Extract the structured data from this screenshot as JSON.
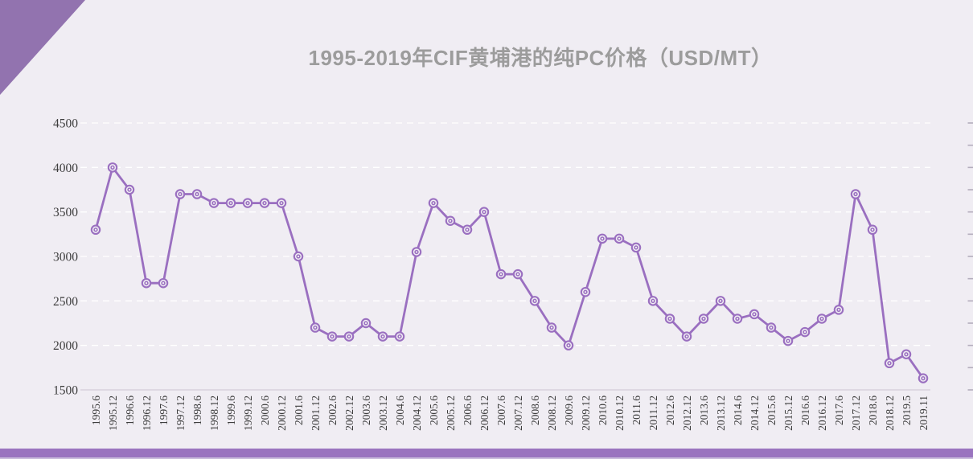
{
  "title": "1995-2019年CIF黄埔港的纯PC价格（USD/MT）",
  "colors": {
    "background": "#f0edf3",
    "accent_triangle": "#9273af",
    "accent_bar": "#9a74bf",
    "accent_strip": "#c9bcdb",
    "line": "#9a6fc0",
    "marker_fill": "#f0edf3",
    "title_text": "#9c9c9c",
    "axis_text": "#3d3d3d",
    "gridline": "#ffffff",
    "axis_line": "#d7d2dc",
    "right_tick": "#b3adbc"
  },
  "chart_data": {
    "type": "line",
    "title": "1995-2019年CIF黄埔港的纯PC价格（USD/MT）",
    "ylabel": "",
    "xlabel": "",
    "ylim": [
      1500,
      4500
    ],
    "yticks": [
      1500,
      2000,
      2500,
      3000,
      3500,
      4000,
      4500
    ],
    "grid": "horizontal-white-dashed",
    "legend": "none",
    "marker": "circle-dot",
    "categories": [
      "1995.6",
      "1995.12",
      "1996.6",
      "1996.12",
      "1997.6",
      "1997.12",
      "1998.6",
      "1998.12",
      "1999.6",
      "1999.12",
      "2000.6",
      "2000.12",
      "2001.6",
      "2001.12",
      "2002.6",
      "2002.12",
      "2003.6",
      "2003.12",
      "2004.6",
      "2004.12",
      "2005.6",
      "2005.12",
      "2006.6",
      "2006.12",
      "2007.6",
      "2007.12",
      "2008.6",
      "2008.12",
      "2009.6",
      "2009.12",
      "2010.6",
      "2010.12",
      "2011.6",
      "2011.12",
      "2012.6",
      "2012.12",
      "2013.6",
      "2013.12",
      "2014.6",
      "2014.12",
      "2015.6",
      "2015.12",
      "2016.6",
      "2016.12",
      "2017.6",
      "2017.12",
      "2018.6",
      "2018.12",
      "2019.5",
      "2019.11"
    ],
    "values": [
      3300,
      4000,
      3750,
      2700,
      2700,
      3700,
      3700,
      3600,
      3600,
      3600,
      3600,
      3600,
      3000,
      2200,
      2100,
      2100,
      2250,
      2100,
      2100,
      3050,
      3600,
      3400,
      3300,
      3500,
      2800,
      2800,
      2500,
      2200,
      2000,
      2600,
      3200,
      3200,
      3100,
      2500,
      2300,
      2100,
      2300,
      2500,
      2300,
      2350,
      2200,
      2050,
      2150,
      2300,
      2400,
      3700,
      3300,
      1800,
      1900,
      1630
    ]
  }
}
